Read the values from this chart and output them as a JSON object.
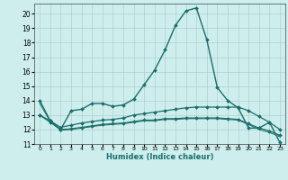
{
  "xlabel": "Humidex (Indice chaleur)",
  "bg_color": "#cdeeed",
  "grid_color": "#b0d0d0",
  "line_color": "#1a6e6a",
  "xlim": [
    -0.5,
    23.5
  ],
  "ylim": [
    11,
    20.7
  ],
  "yticks": [
    11,
    12,
    13,
    14,
    15,
    16,
    17,
    18,
    19,
    20
  ],
  "xticks": [
    0,
    1,
    2,
    3,
    4,
    5,
    6,
    7,
    8,
    9,
    10,
    11,
    12,
    13,
    14,
    15,
    16,
    17,
    18,
    19,
    20,
    21,
    22,
    23
  ],
  "series": [
    {
      "x": [
        0,
        1,
        2,
        3,
        4,
        5,
        6,
        7,
        8,
        9,
        10,
        11,
        12,
        13,
        14,
        15,
        16,
        17,
        18,
        19,
        20,
        21,
        22,
        23
      ],
      "y": [
        14.0,
        12.6,
        12.0,
        13.3,
        13.4,
        13.8,
        13.8,
        13.6,
        13.7,
        14.1,
        15.1,
        16.1,
        17.5,
        19.2,
        20.2,
        20.4,
        18.2,
        14.9,
        14.0,
        13.5,
        12.1,
        12.1,
        12.5,
        11.1
      ],
      "marker": "D",
      "markersize": 2.0,
      "linewidth": 1.0,
      "has_marker": true
    },
    {
      "x": [
        0,
        1,
        2,
        3,
        4,
        5,
        6,
        7,
        8,
        9,
        10,
        11,
        12,
        13,
        14,
        15,
        16,
        17,
        18,
        19,
        20,
        21,
        22,
        23
      ],
      "y": [
        13.0,
        12.6,
        12.15,
        12.3,
        12.45,
        12.55,
        12.65,
        12.7,
        12.8,
        13.0,
        13.1,
        13.2,
        13.3,
        13.4,
        13.5,
        13.55,
        13.55,
        13.55,
        13.55,
        13.55,
        13.3,
        12.9,
        12.5,
        12.0
      ],
      "marker": "D",
      "markersize": 2.0,
      "linewidth": 0.9,
      "has_marker": true
    },
    {
      "x": [
        0,
        1,
        2,
        3,
        4,
        5,
        6,
        7,
        8,
        9,
        10,
        11,
        12,
        13,
        14,
        15,
        16,
        17,
        18,
        19,
        20,
        21,
        22,
        23
      ],
      "y": [
        13.0,
        12.5,
        12.0,
        12.05,
        12.15,
        12.25,
        12.35,
        12.4,
        12.45,
        12.55,
        12.65,
        12.65,
        12.75,
        12.75,
        12.8,
        12.8,
        12.8,
        12.8,
        12.75,
        12.7,
        12.4,
        12.1,
        11.9,
        11.6
      ],
      "marker": "D",
      "markersize": 2.0,
      "linewidth": 0.9,
      "has_marker": true
    },
    {
      "x": [
        0,
        1,
        2,
        3,
        4,
        5,
        6,
        7,
        8,
        9,
        10,
        11,
        12,
        13,
        14,
        15,
        16,
        17,
        18,
        19,
        20,
        21,
        22,
        23
      ],
      "y": [
        13.8,
        12.55,
        11.95,
        12.0,
        12.1,
        12.2,
        12.3,
        12.35,
        12.4,
        12.5,
        12.6,
        12.6,
        12.7,
        12.7,
        12.75,
        12.75,
        12.75,
        12.75,
        12.7,
        12.65,
        12.35,
        12.0,
        11.8,
        11.5
      ],
      "marker": null,
      "markersize": 0,
      "linewidth": 0.7,
      "has_marker": false
    }
  ]
}
